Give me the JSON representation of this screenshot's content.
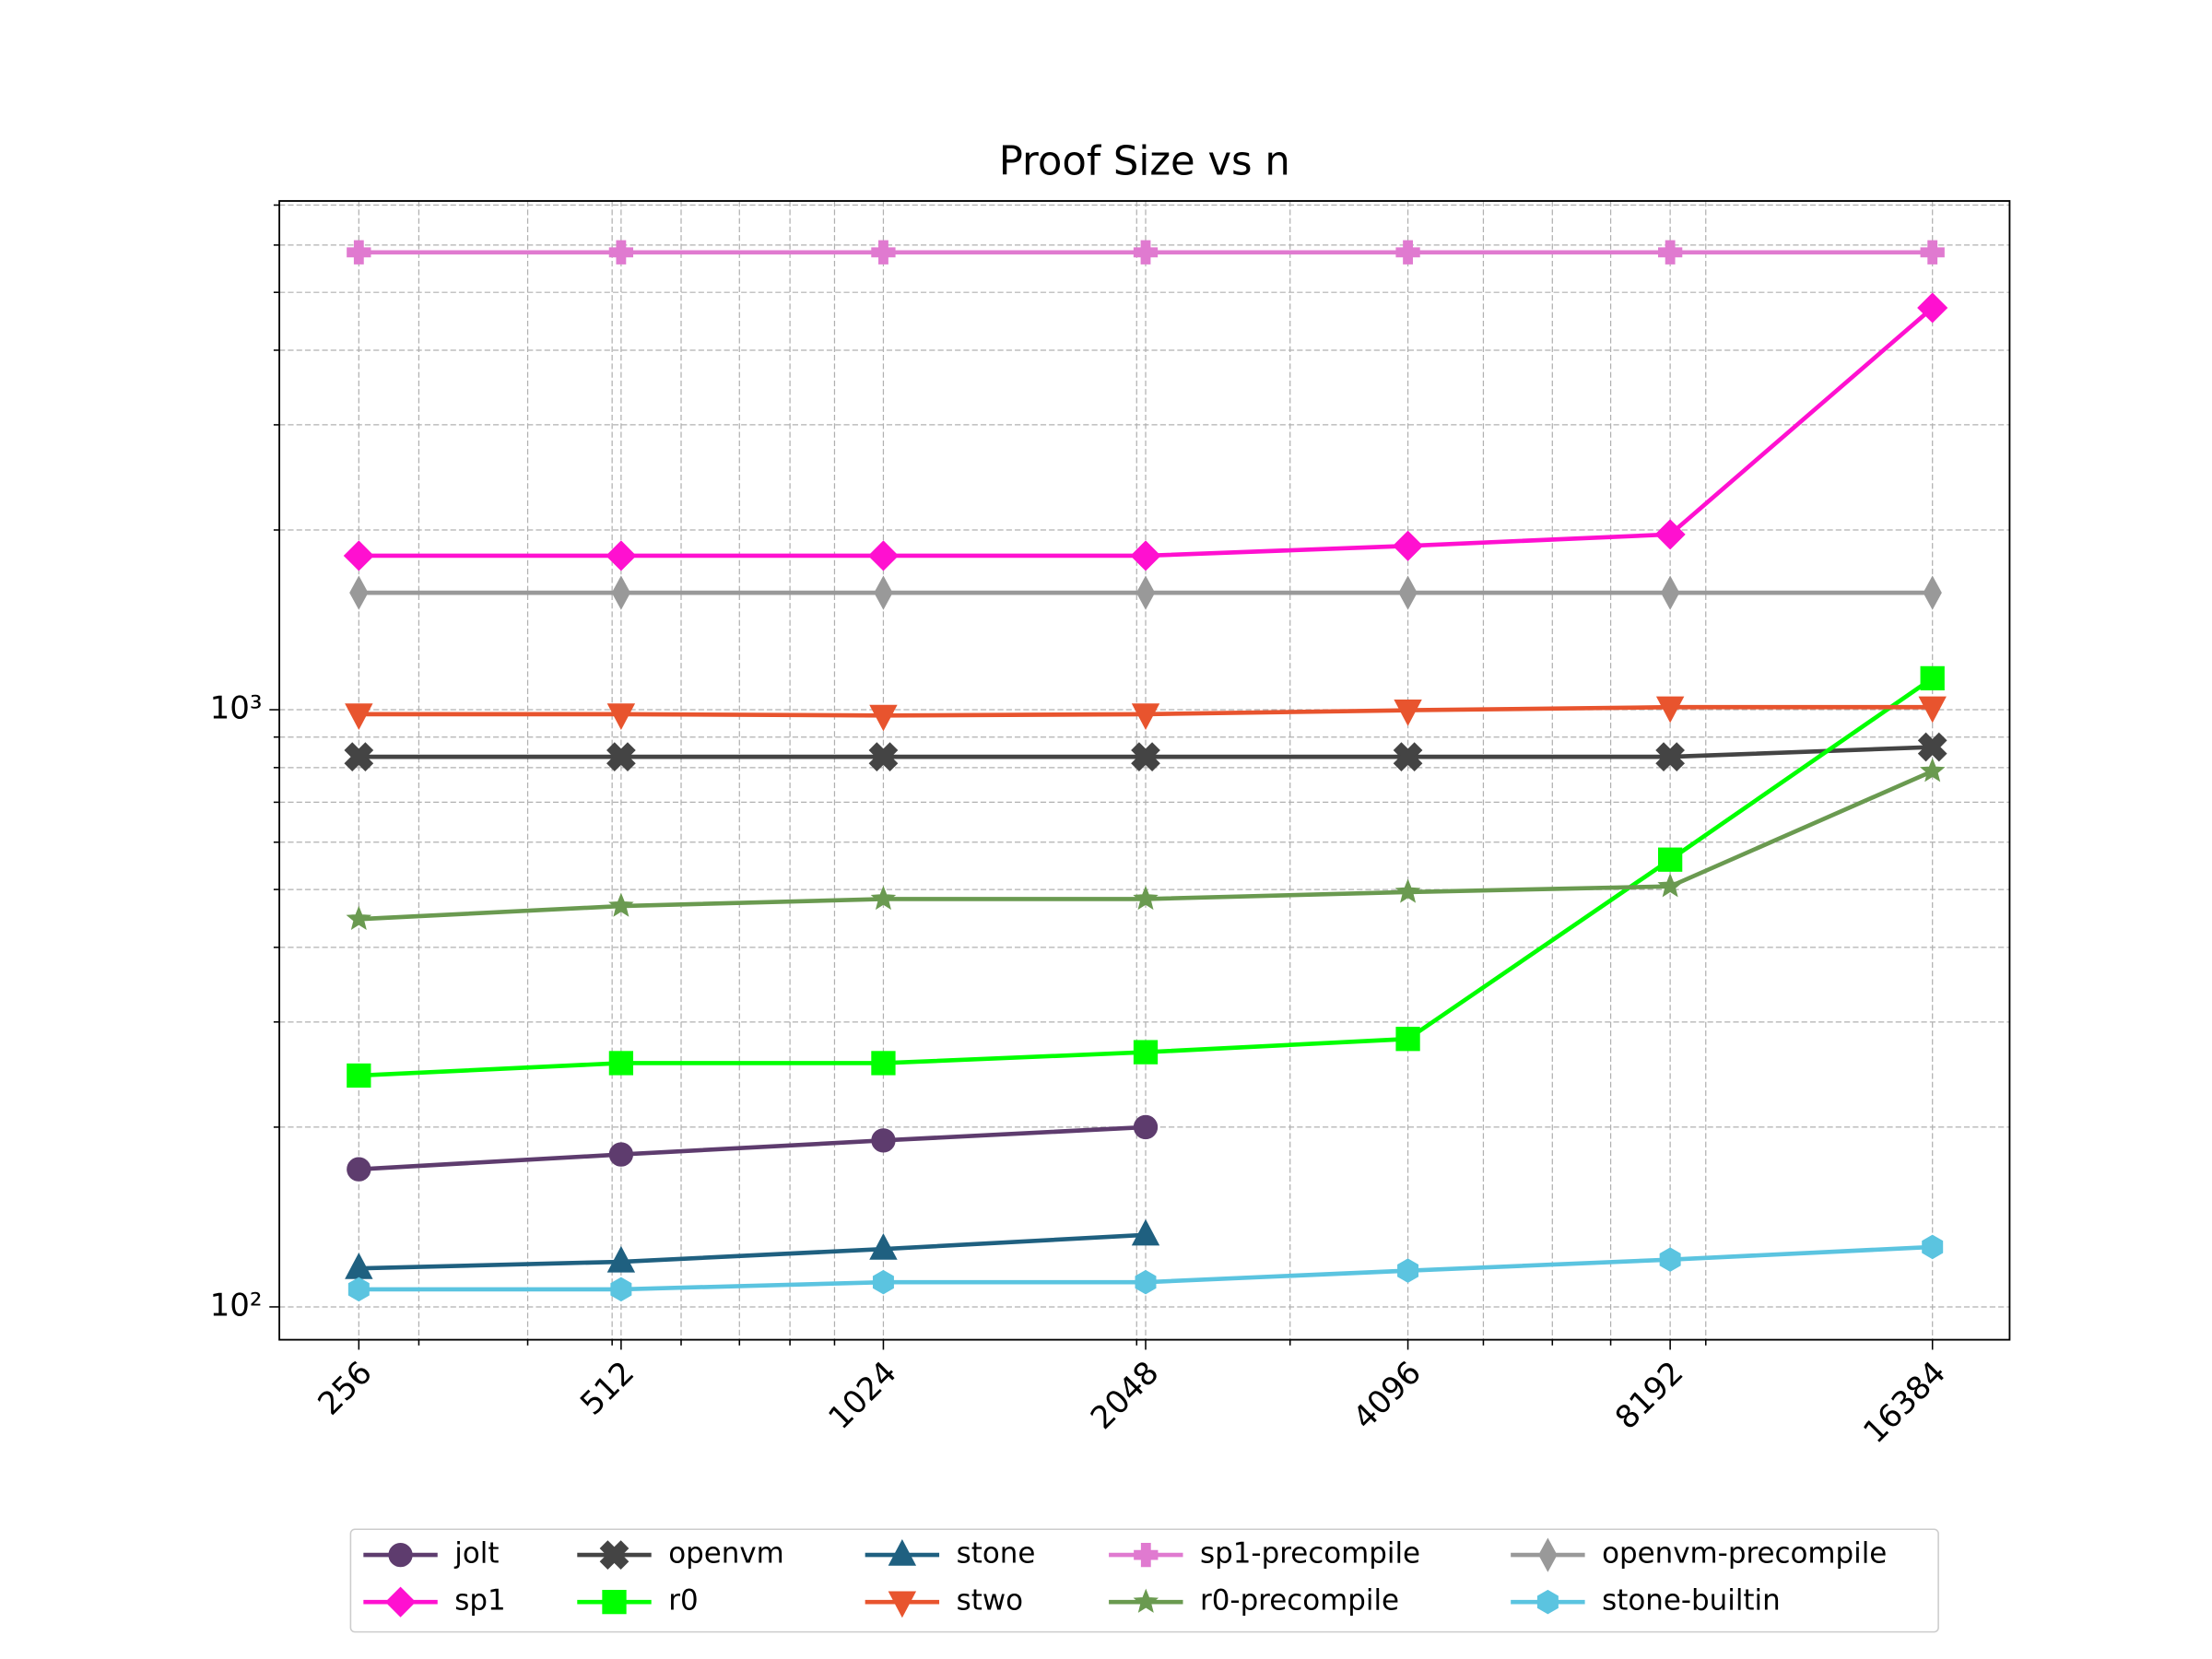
{
  "chart_data": {
    "type": "line",
    "title": "Proof Size vs n",
    "x": [
      256,
      512,
      1024,
      2048,
      4096,
      8192,
      16384
    ],
    "xlim": [
      207.5,
      20090
    ],
    "xticks": [
      256,
      512,
      1024,
      2048,
      4096,
      8192,
      16384
    ],
    "xminorticks": [
      300,
      400,
      500,
      600,
      700,
      800,
      900,
      2000,
      3000,
      5000,
      6000,
      7000,
      9000
    ],
    "xscale": "log",
    "ylim": [
      88.1,
      7112
    ],
    "yscale": "log",
    "yticks": [
      {
        "value": 100,
        "label": "10²"
      },
      {
        "value": 1000,
        "label": "10³"
      }
    ],
    "yminorticks": [
      200,
      300,
      400,
      500,
      600,
      700,
      800,
      900,
      2000,
      3000,
      4000,
      5000,
      6000,
      7000
    ],
    "grid": true,
    "legend": "bottom",
    "series": [
      {
        "name": "jolt",
        "color": "#5e3c6e",
        "marker": "circle",
        "values": [
          170,
          180,
          190,
          200,
          null,
          null,
          null
        ]
      },
      {
        "name": "sp1",
        "color": "#ff10d0",
        "marker": "diamond",
        "values": [
          1811,
          1811,
          1811,
          1811,
          1881,
          1966,
          4710
        ]
      },
      {
        "name": "openvm",
        "color": "#444444",
        "marker": "x",
        "values": [
          834,
          834,
          834,
          834,
          834,
          834,
          866
        ]
      },
      {
        "name": "r0",
        "color": "#00ff00",
        "marker": "square",
        "values": [
          244,
          256,
          256,
          267,
          281,
          561,
          1129
        ]
      },
      {
        "name": "stone",
        "color": "#1f6080",
        "marker": "triangle-up",
        "values": [
          116,
          119,
          125,
          132,
          null,
          null,
          null
        ]
      },
      {
        "name": "stwo",
        "color": "#e8542e",
        "marker": "triangle-down",
        "values": [
          983,
          983,
          978,
          983,
          998,
          1010,
          1010
        ]
      },
      {
        "name": "sp1-precompile",
        "color": "#e07ad0",
        "marker": "plus",
        "values": [
          5834,
          5834,
          5834,
          5834,
          5834,
          5834,
          5834
        ]
      },
      {
        "name": "r0-precompile",
        "color": "#6a9a50",
        "marker": "star",
        "values": [
          446,
          469,
          482,
          482,
          495,
          506,
          789
        ]
      },
      {
        "name": "openvm-precompile",
        "color": "#999999",
        "marker": "thin-diamond",
        "values": [
          1570,
          1570,
          1570,
          1570,
          1570,
          1570,
          1570
        ]
      },
      {
        "name": "stone-builtin",
        "color": "#5bc4e0",
        "marker": "hexagon",
        "values": [
          107,
          107,
          110,
          110,
          115,
          120,
          126
        ]
      }
    ]
  }
}
